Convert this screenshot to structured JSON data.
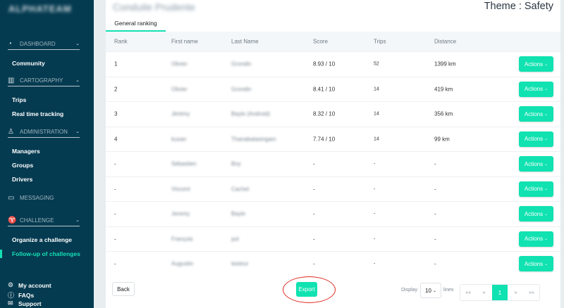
{
  "sidebar": {
    "logo": "ALPHATEAM",
    "sections": [
      {
        "label": "DASHBOARD",
        "icon": "dashboard-icon",
        "items": [
          "Community"
        ]
      },
      {
        "label": "CARTOGRAPHY",
        "icon": "map-icon",
        "items": [
          "Trips",
          "Real time tracking"
        ]
      },
      {
        "label": "ADMINISTRATION",
        "icon": "user-admin-icon",
        "items": [
          "Managers",
          "Groups",
          "Drivers"
        ]
      },
      {
        "label": "MESSAGING",
        "icon": "chat-icon",
        "items": []
      },
      {
        "label": "CHALLENGE",
        "icon": "trophy-icon",
        "items": [
          "Organize a challenge",
          "Follow-up of challenges"
        ]
      }
    ],
    "active_item": "Follow-up of challenges",
    "bottom": [
      {
        "label": "My account",
        "icon": "gear-icon"
      },
      {
        "label": "FAQs",
        "icon": "help-icon"
      },
      {
        "label": "Support",
        "icon": "mail-icon"
      }
    ]
  },
  "header": {
    "title": "Conduite Prudente",
    "theme": "Theme : Safety"
  },
  "tabs": [
    {
      "label": "General ranking",
      "active": true
    }
  ],
  "table": {
    "columns": [
      "Rank",
      "First name",
      "Last Name",
      "Score",
      "Trips",
      "Distance"
    ],
    "action_label": "Actions",
    "rows": [
      [
        "1",
        "Olivier",
        "Grondin",
        "8.93 / 10",
        "52",
        "1399 km"
      ],
      [
        "2",
        "Olivier",
        "Grondin",
        "8.41 / 10",
        "14",
        "419 km"
      ],
      [
        "3",
        "Jérémy",
        "Bayle (Android)",
        "8.32 / 10",
        "14",
        "356 km"
      ],
      [
        "4",
        "kusan",
        "Thanabalasingam",
        "7.74 / 10",
        "14",
        "99 km"
      ],
      [
        "-",
        "Sébastien",
        "Boy",
        "-",
        "-",
        "-"
      ],
      [
        "-",
        "Vincent",
        "Cachet",
        "-",
        "-",
        "-"
      ],
      [
        "-",
        "Jeremy",
        "Bayle",
        "-",
        "-",
        "-"
      ],
      [
        "-",
        "François",
        "pol",
        "-",
        "-",
        "-"
      ],
      [
        "-",
        "Augustin",
        "testeur",
        "-",
        "-",
        "-"
      ]
    ]
  },
  "footer": {
    "back": "Back",
    "export": "Export",
    "display": "Display",
    "lines_value": "10",
    "lines": "lines",
    "pager": [
      "««",
      "«",
      "1",
      "»",
      "»»"
    ],
    "current_page": "1"
  },
  "colors": {
    "sidebar": "#053b51",
    "accent": "#10e2b1",
    "highlight_circle": "#e02a20"
  }
}
